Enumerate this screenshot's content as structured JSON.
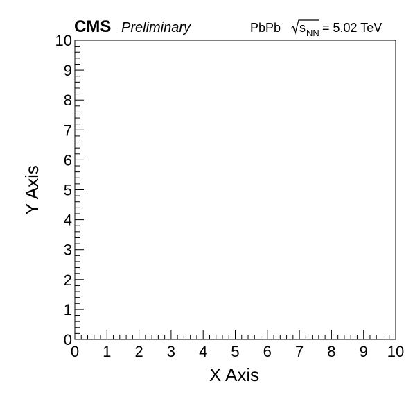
{
  "header": {
    "experiment": "CMS",
    "status": "Preliminary",
    "system": "PbPb",
    "sqrt_sym": "s",
    "sqrt_sub": "NN",
    "energy": "= 5.02 TeV"
  },
  "chart_data": {
    "type": "scatter",
    "title": "",
    "xlabel": "X Axis",
    "ylabel": "Y Axis",
    "xlim": [
      0,
      10
    ],
    "ylim": [
      0,
      10
    ],
    "x_ticks": [
      "0",
      "1",
      "2",
      "3",
      "4",
      "5",
      "6",
      "7",
      "8",
      "9",
      "10"
    ],
    "y_ticks": [
      "0",
      "1",
      "2",
      "3",
      "4",
      "5",
      "6",
      "7",
      "8",
      "9",
      "10"
    ],
    "series": [],
    "grid": false
  },
  "colors": {
    "frame": "#000000",
    "background": "#ffffff"
  }
}
